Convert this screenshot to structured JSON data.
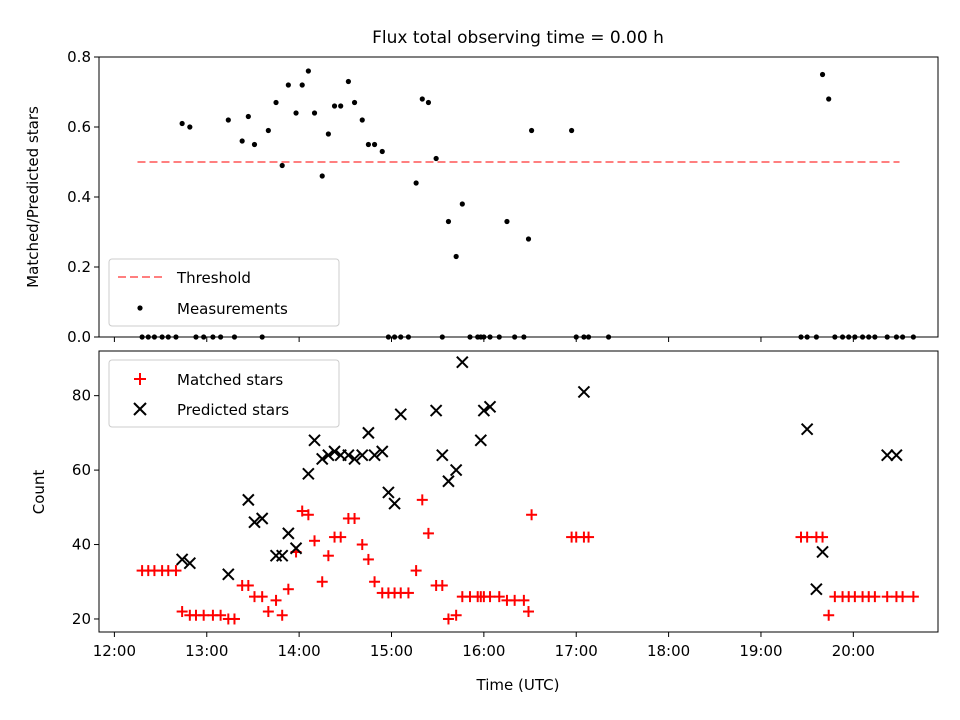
{
  "chart_data": [
    {
      "type": "scatter",
      "title": "Flux total observing time = 0.00 h",
      "ylabel": "Matched/Predicted stars",
      "xlabel": "",
      "ylim": [
        0,
        0.8
      ],
      "yticks": [
        0.0,
        0.2,
        0.4,
        0.6,
        0.8
      ],
      "ytick_labels": [
        "0.0",
        "0.2",
        "0.4",
        "0.6",
        "0.8"
      ],
      "legend": "lower-left",
      "grid": false,
      "series": [
        {
          "name": "Threshold",
          "kind": "dashed-line",
          "color": "#ff7f7f",
          "x": [
            "12:15",
            "20:30"
          ],
          "y": [
            0.5,
            0.5
          ]
        },
        {
          "name": "Measurements",
          "kind": "dot",
          "color": "#000000",
          "x": [
            "12:18",
            "12:22",
            "12:26",
            "12:31",
            "12:35",
            "12:40",
            "12:44",
            "12:49",
            "12:53",
            "12:58",
            "13:04",
            "13:09",
            "13:14",
            "13:18",
            "13:23",
            "13:27",
            "13:31",
            "13:36",
            "13:40",
            "13:45",
            "13:49",
            "13:53",
            "13:58",
            "14:02",
            "14:06",
            "14:10",
            "14:15",
            "14:19",
            "14:23",
            "14:27",
            "14:32",
            "14:36",
            "14:41",
            "14:45",
            "14:49",
            "14:54",
            "14:58",
            "15:02",
            "15:06",
            "15:11",
            "15:16",
            "15:20",
            "15:24",
            "15:29",
            "15:33",
            "15:37",
            "15:42",
            "15:46",
            "15:51",
            "15:56",
            "15:58",
            "16:00",
            "16:04",
            "16:10",
            "16:15",
            "16:20",
            "16:26",
            "16:29",
            "16:31",
            "16:57",
            "17:00",
            "17:05",
            "17:08",
            "17:21",
            "19:26",
            "19:30",
            "19:36",
            "19:40",
            "19:44",
            "19:48",
            "19:53",
            "19:57",
            "20:01",
            "20:06",
            "20:10",
            "20:14",
            "20:22",
            "20:28",
            "20:32",
            "20:39"
          ],
          "y": [
            0.0,
            0.0,
            0.0,
            0.0,
            0.0,
            0.0,
            0.61,
            0.6,
            0.0,
            0.0,
            0.0,
            0.0,
            0.62,
            0.0,
            0.56,
            0.63,
            0.55,
            0.0,
            0.59,
            0.67,
            0.49,
            0.72,
            0.64,
            0.72,
            0.76,
            0.64,
            0.46,
            0.58,
            0.66,
            0.66,
            0.73,
            0.67,
            0.62,
            0.55,
            0.55,
            0.53,
            0.0,
            0.0,
            0.0,
            0.0,
            0.44,
            0.68,
            0.67,
            0.51,
            0.0,
            0.33,
            0.23,
            0.38,
            0.0,
            0.0,
            0.0,
            0.0,
            0.0,
            0.0,
            0.33,
            0.0,
            0.0,
            0.28,
            0.59,
            0.59,
            0.0,
            0.0,
            0.0,
            0.0,
            0.0,
            0.0,
            0.0,
            0.75,
            0.68,
            0.0,
            0.0,
            0.0,
            0.0,
            0.0,
            0.0,
            0.0,
            0.0,
            0.0,
            0.0,
            0.0
          ]
        }
      ]
    },
    {
      "type": "scatter",
      "title": "",
      "xlabel": "Time (UTC)",
      "ylabel": "Count",
      "xlim": [
        "11:50",
        "20:55"
      ],
      "ylim": [
        16.5,
        92
      ],
      "yticks": [
        20,
        40,
        60,
        80
      ],
      "ytick_labels": [
        "20",
        "40",
        "60",
        "80"
      ],
      "xticks": [
        "12:00",
        "13:00",
        "14:00",
        "15:00",
        "16:00",
        "17:00",
        "18:00",
        "19:00",
        "20:00"
      ],
      "legend": "upper-left",
      "grid": false,
      "series": [
        {
          "name": "Matched stars",
          "kind": "plus",
          "color": "#ff0000",
          "x": [
            "12:18",
            "12:22",
            "12:26",
            "12:31",
            "12:35",
            "12:40",
            "12:44",
            "12:49",
            "12:53",
            "12:58",
            "13:04",
            "13:09",
            "13:14",
            "13:18",
            "13:23",
            "13:27",
            "13:31",
            "13:36",
            "13:40",
            "13:45",
            "13:49",
            "13:53",
            "13:58",
            "14:02",
            "14:06",
            "14:10",
            "14:15",
            "14:19",
            "14:23",
            "14:27",
            "14:32",
            "14:36",
            "14:41",
            "14:45",
            "14:49",
            "14:54",
            "14:58",
            "15:02",
            "15:06",
            "15:11",
            "15:16",
            "15:20",
            "15:24",
            "15:29",
            "15:33",
            "15:37",
            "15:42",
            "15:46",
            "15:51",
            "15:56",
            "15:58",
            "16:00",
            "16:04",
            "16:10",
            "16:15",
            "16:20",
            "16:26",
            "16:29",
            "16:31",
            "16:57",
            "17:00",
            "17:05",
            "17:08",
            "19:26",
            "19:30",
            "19:36",
            "19:40",
            "19:44",
            "19:48",
            "19:53",
            "19:57",
            "20:01",
            "20:06",
            "20:10",
            "20:14",
            "20:22",
            "20:28",
            "20:32",
            "20:39"
          ],
          "y": [
            33,
            33,
            33,
            33,
            33,
            33,
            22,
            21,
            21,
            21,
            21,
            21,
            20,
            20,
            29,
            29,
            26,
            26,
            22,
            25,
            21,
            28,
            38,
            49,
            48,
            41,
            30,
            37,
            42,
            42,
            47,
            47,
            40,
            36,
            30,
            27,
            27,
            27,
            27,
            27,
            33,
            52,
            43,
            29,
            29,
            20,
            21,
            26,
            26,
            26,
            26,
            26,
            26,
            26,
            25,
            25,
            25,
            22,
            48,
            42,
            42,
            42,
            42,
            42,
            42,
            42,
            42,
            21,
            26,
            26,
            26,
            26,
            26,
            26,
            26,
            26,
            26,
            26,
            26
          ]
        },
        {
          "name": "Predicted stars",
          "kind": "x",
          "color": "#000000",
          "x": [
            "12:44",
            "12:49",
            "13:14",
            "13:27",
            "13:31",
            "13:36",
            "13:45",
            "13:49",
            "13:53",
            "13:58",
            "14:06",
            "14:10",
            "14:15",
            "14:19",
            "14:23",
            "14:27",
            "14:32",
            "14:36",
            "14:41",
            "14:45",
            "14:49",
            "14:54",
            "14:58",
            "15:02",
            "15:06",
            "15:29",
            "15:33",
            "15:37",
            "15:42",
            "15:46",
            "15:58",
            "16:00",
            "16:04",
            "17:05",
            "19:30",
            "19:36",
            "19:40",
            "20:22",
            "20:28"
          ],
          "y": [
            36,
            35,
            32,
            52,
            46,
            47,
            37,
            37,
            43,
            39,
            59,
            68,
            63,
            64,
            65,
            64,
            64,
            63,
            64,
            70,
            64,
            65,
            54,
            51,
            75,
            76,
            64,
            57,
            60,
            89,
            68,
            76,
            77,
            81,
            71,
            28,
            38,
            64,
            64
          ]
        }
      ]
    }
  ]
}
